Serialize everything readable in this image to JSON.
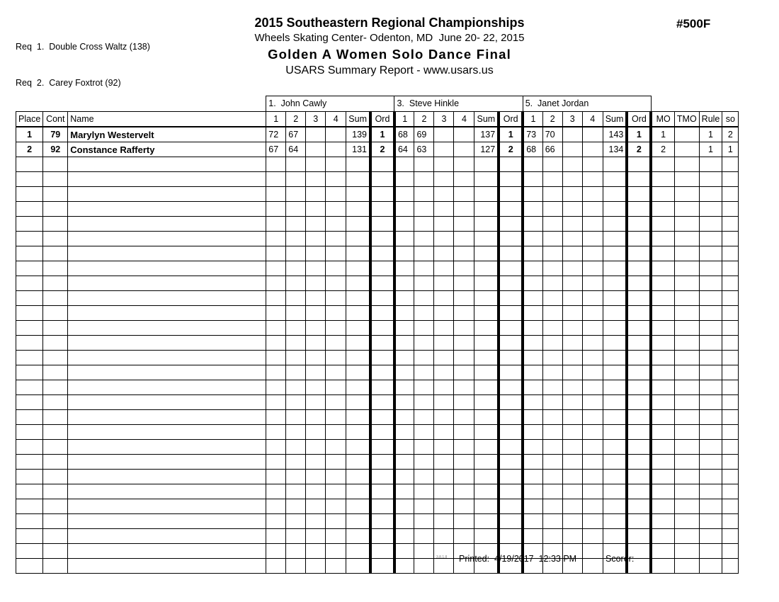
{
  "colors": {
    "ink": "#000000",
    "paper": "#ffffff",
    "version_gray": "#808080"
  },
  "header": {
    "req_line_1": "Req  1.  Double Cross Waltz (138)",
    "req_line_2": "Req  2.  Carey Foxtrot (92)",
    "title": "2015 Southeastern Regional Championships",
    "venue_line": "Wheels Skating Center- Odenton, MD  June 20- 22, 2015",
    "event_title": "Golden A Women Solo Dance Final",
    "report_title": "USARS Summary Report - www.usars.us",
    "event_number": "#500F"
  },
  "table": {
    "judges": [
      "1.  John Cawly",
      "3.  Steve Hinkle",
      "5.  Janet Jordan"
    ],
    "left_headers": [
      "Place",
      "Cont",
      "Name"
    ],
    "judge_subheaders": [
      "1",
      "2",
      "3",
      "4",
      "Sum",
      "Ord"
    ],
    "right_headers": [
      "MO",
      "TMO",
      "Rule",
      "so"
    ],
    "rows": [
      {
        "place": "1",
        "cont": "79",
        "name": "Marylyn Westervelt",
        "judges": [
          {
            "scores": [
              "72",
              "67",
              "",
              ""
            ],
            "sum": "139",
            "ord": "1"
          },
          {
            "scores": [
              "68",
              "69",
              "",
              ""
            ],
            "sum": "137",
            "ord": "1"
          },
          {
            "scores": [
              "73",
              "70",
              "",
              ""
            ],
            "sum": "143",
            "ord": "1"
          }
        ],
        "mo": "1",
        "tmo": "",
        "rule": "1",
        "so": "2"
      },
      {
        "place": "2",
        "cont": "92",
        "name": "Constance Rafferty",
        "judges": [
          {
            "scores": [
              "67",
              "64",
              "",
              ""
            ],
            "sum": "131",
            "ord": "2"
          },
          {
            "scores": [
              "64",
              "63",
              "",
              ""
            ],
            "sum": "127",
            "ord": "2"
          },
          {
            "scores": [
              "68",
              "66",
              "",
              ""
            ],
            "sum": "134",
            "ord": "2"
          }
        ],
        "mo": "2",
        "tmo": "",
        "rule": "1",
        "so": "1"
      }
    ],
    "empty_row_count": 28
  },
  "footer": {
    "version": "3.8.1.8",
    "printed_label": "Printed:  4/19/2017  12:33 PM",
    "scorer_label": "Scorer:"
  }
}
